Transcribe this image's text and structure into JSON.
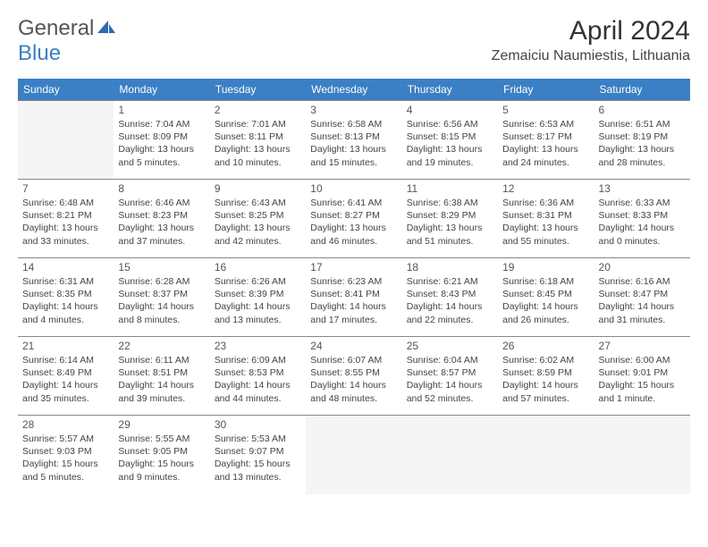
{
  "header": {
    "logo_general": "General",
    "logo_blue": "Blue",
    "month_title": "April 2024",
    "location": "Zemaiciu Naumiestis, Lithuania"
  },
  "colors": {
    "header_bg": "#3b7fc4",
    "header_text": "#ffffff",
    "border": "#888888",
    "empty_bg": "#f5f5f5",
    "text": "#444444"
  },
  "day_names": [
    "Sunday",
    "Monday",
    "Tuesday",
    "Wednesday",
    "Thursday",
    "Friday",
    "Saturday"
  ],
  "grid": {
    "start_day_index": 1,
    "days_in_month": 30
  },
  "days": {
    "1": {
      "sunrise": "7:04 AM",
      "sunset": "8:09 PM",
      "daylight": "13 hours and 5 minutes."
    },
    "2": {
      "sunrise": "7:01 AM",
      "sunset": "8:11 PM",
      "daylight": "13 hours and 10 minutes."
    },
    "3": {
      "sunrise": "6:58 AM",
      "sunset": "8:13 PM",
      "daylight": "13 hours and 15 minutes."
    },
    "4": {
      "sunrise": "6:56 AM",
      "sunset": "8:15 PM",
      "daylight": "13 hours and 19 minutes."
    },
    "5": {
      "sunrise": "6:53 AM",
      "sunset": "8:17 PM",
      "daylight": "13 hours and 24 minutes."
    },
    "6": {
      "sunrise": "6:51 AM",
      "sunset": "8:19 PM",
      "daylight": "13 hours and 28 minutes."
    },
    "7": {
      "sunrise": "6:48 AM",
      "sunset": "8:21 PM",
      "daylight": "13 hours and 33 minutes."
    },
    "8": {
      "sunrise": "6:46 AM",
      "sunset": "8:23 PM",
      "daylight": "13 hours and 37 minutes."
    },
    "9": {
      "sunrise": "6:43 AM",
      "sunset": "8:25 PM",
      "daylight": "13 hours and 42 minutes."
    },
    "10": {
      "sunrise": "6:41 AM",
      "sunset": "8:27 PM",
      "daylight": "13 hours and 46 minutes."
    },
    "11": {
      "sunrise": "6:38 AM",
      "sunset": "8:29 PM",
      "daylight": "13 hours and 51 minutes."
    },
    "12": {
      "sunrise": "6:36 AM",
      "sunset": "8:31 PM",
      "daylight": "13 hours and 55 minutes."
    },
    "13": {
      "sunrise": "6:33 AM",
      "sunset": "8:33 PM",
      "daylight": "14 hours and 0 minutes."
    },
    "14": {
      "sunrise": "6:31 AM",
      "sunset": "8:35 PM",
      "daylight": "14 hours and 4 minutes."
    },
    "15": {
      "sunrise": "6:28 AM",
      "sunset": "8:37 PM",
      "daylight": "14 hours and 8 minutes."
    },
    "16": {
      "sunrise": "6:26 AM",
      "sunset": "8:39 PM",
      "daylight": "14 hours and 13 minutes."
    },
    "17": {
      "sunrise": "6:23 AM",
      "sunset": "8:41 PM",
      "daylight": "14 hours and 17 minutes."
    },
    "18": {
      "sunrise": "6:21 AM",
      "sunset": "8:43 PM",
      "daylight": "14 hours and 22 minutes."
    },
    "19": {
      "sunrise": "6:18 AM",
      "sunset": "8:45 PM",
      "daylight": "14 hours and 26 minutes."
    },
    "20": {
      "sunrise": "6:16 AM",
      "sunset": "8:47 PM",
      "daylight": "14 hours and 31 minutes."
    },
    "21": {
      "sunrise": "6:14 AM",
      "sunset": "8:49 PM",
      "daylight": "14 hours and 35 minutes."
    },
    "22": {
      "sunrise": "6:11 AM",
      "sunset": "8:51 PM",
      "daylight": "14 hours and 39 minutes."
    },
    "23": {
      "sunrise": "6:09 AM",
      "sunset": "8:53 PM",
      "daylight": "14 hours and 44 minutes."
    },
    "24": {
      "sunrise": "6:07 AM",
      "sunset": "8:55 PM",
      "daylight": "14 hours and 48 minutes."
    },
    "25": {
      "sunrise": "6:04 AM",
      "sunset": "8:57 PM",
      "daylight": "14 hours and 52 minutes."
    },
    "26": {
      "sunrise": "6:02 AM",
      "sunset": "8:59 PM",
      "daylight": "14 hours and 57 minutes."
    },
    "27": {
      "sunrise": "6:00 AM",
      "sunset": "9:01 PM",
      "daylight": "15 hours and 1 minute."
    },
    "28": {
      "sunrise": "5:57 AM",
      "sunset": "9:03 PM",
      "daylight": "15 hours and 5 minutes."
    },
    "29": {
      "sunrise": "5:55 AM",
      "sunset": "9:05 PM",
      "daylight": "15 hours and 9 minutes."
    },
    "30": {
      "sunrise": "5:53 AM",
      "sunset": "9:07 PM",
      "daylight": "15 hours and 13 minutes."
    }
  },
  "labels": {
    "sunrise": "Sunrise:",
    "sunset": "Sunset:",
    "daylight": "Daylight:"
  }
}
